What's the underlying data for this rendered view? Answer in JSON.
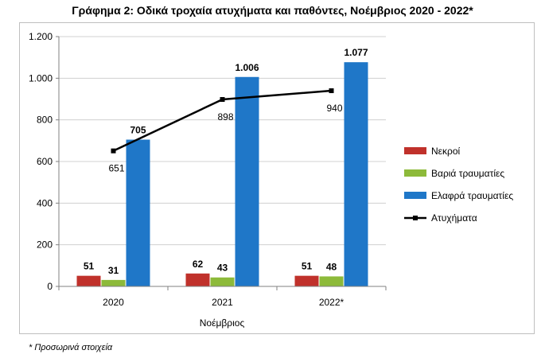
{
  "chart_data": {
    "type": "bar",
    "title": "Γράφημα 2: Οδικά τροχαία ατυχήματα και παθόντες, Νοέμβριος 2020 - 2022*",
    "xlabel": "Νοέμβριος",
    "ylabel": "",
    "categories": [
      "2020",
      "2021",
      "2022*"
    ],
    "ylim": [
      0,
      1200
    ],
    "yticks": [
      0,
      200,
      400,
      600,
      800,
      1000,
      1200
    ],
    "ytick_labels": [
      "0",
      "200",
      "400",
      "600",
      "800",
      "1.000",
      "1.200"
    ],
    "grid": true,
    "legend_position": "right",
    "series": [
      {
        "name": "Νεκροί",
        "kind": "bar",
        "color": "#c0312b",
        "values": [
          51,
          62,
          51
        ],
        "labels": [
          "51",
          "62",
          "51"
        ]
      },
      {
        "name": "Βαριά τραυματίες",
        "kind": "bar",
        "color": "#8dba3a",
        "values": [
          31,
          43,
          48
        ],
        "labels": [
          "31",
          "43",
          "48"
        ]
      },
      {
        "name": "Ελαφρά τραυματίες",
        "kind": "bar",
        "color": "#1f77c8",
        "values": [
          705,
          1006,
          1077
        ],
        "labels": [
          "705",
          "1.006",
          "1.077"
        ]
      },
      {
        "name": "Ατυχήματα",
        "kind": "line",
        "color": "#000000",
        "values": [
          651,
          898,
          940
        ],
        "labels": [
          "651",
          "898",
          "940"
        ]
      }
    ]
  },
  "footnote": "* Προσωρινά στοιχεία"
}
